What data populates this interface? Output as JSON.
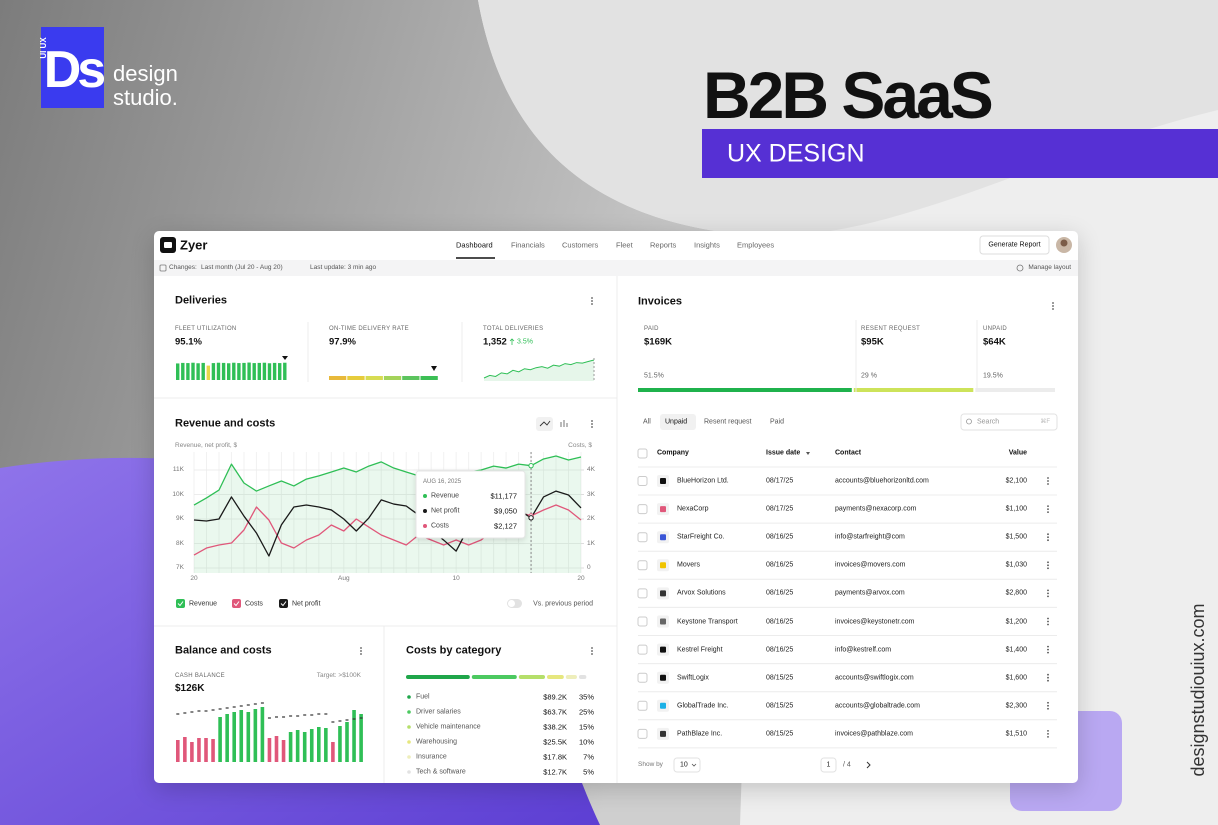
{
  "brand": {
    "tag": "UI UX",
    "logo": "Ds",
    "name": [
      "design",
      "studio."
    ]
  },
  "hero": {
    "title": "B2B SaaS",
    "subtitle": "UX DESIGN"
  },
  "website": "designstudiouiux.com",
  "app": {
    "name": "Zyer",
    "nav": [
      "Dashboard",
      "Financials",
      "Customers",
      "Fleet",
      "Reports",
      "Insights",
      "Employees"
    ],
    "action": "Generate Report",
    "changes_label": "Changes:",
    "changes_value": "Last month (Jul 20 - Aug 20)",
    "last_update": "Last update: 3 min ago",
    "manage_layout": "Manage layout",
    "deliveries": {
      "title": "Deliveries",
      "fleet_utilization": {
        "label": "FLEET UTILIZATION",
        "value": "95.1%",
        "bars": [
          92,
          95,
          94,
          96,
          93,
          95,
          80,
          94,
          96,
          95,
          93,
          96,
          94,
          95,
          97,
          94,
          95,
          96,
          93,
          95,
          94,
          96
        ],
        "bar_colors": [
          "#2fbf56",
          "#2fbf56",
          "#2fbf56",
          "#2fbf56",
          "#2fbf56",
          "#2fbf56",
          "#e6d84a",
          "#2fbf56",
          "#2fbf56",
          "#2fbf56",
          "#2fbf56",
          "#2fbf56",
          "#2fbf56",
          "#2fbf56",
          "#2fbf56",
          "#2fbf56",
          "#2fbf56",
          "#2fbf56",
          "#2fbf56",
          "#2fbf56",
          "#2fbf56",
          "#2fbf56"
        ]
      },
      "on_time": {
        "label": "ON-TIME DELIVERY RATE",
        "value": "97.9%"
      },
      "total": {
        "label": "TOTAL DELIVERIES",
        "value": "1,352",
        "change": "3.5%",
        "trend": [
          40,
          45,
          43,
          50,
          48,
          55,
          52,
          58,
          56,
          60,
          62,
          59,
          65,
          63,
          68,
          66,
          70,
          69,
          72,
          75
        ]
      }
    },
    "revenue_chart": {
      "type": "line",
      "title": "Revenue and costs",
      "y_label": "Revenue, net profit, $",
      "y2_label": "Costs, $",
      "categories": [
        "20",
        null,
        null,
        null,
        null,
        null,
        null,
        null,
        null,
        null,
        null,
        null,
        "Aug",
        null,
        null,
        null,
        null,
        null,
        null,
        null,
        null,
        "10",
        null,
        null,
        null,
        null,
        null,
        null,
        null,
        null,
        null,
        "20"
      ],
      "series": [
        {
          "name": "Revenue",
          "color": "#2fbf56",
          "values": [
            9570,
            9860,
            10180,
            11240,
            10470,
            10140,
            10350,
            10550,
            10350,
            10630,
            10760,
            10920,
            11080,
            10920,
            11160,
            11330,
            11080,
            10920,
            10760,
            10880,
            10670,
            10800,
            10920,
            11000,
            11160,
            11080,
            11240,
            11177,
            11450,
            11570,
            11410,
            11530
          ]
        },
        {
          "name": "Costs",
          "color": "#e0577a",
          "axis": "y2",
          "values": [
            530,
            816,
            939,
            1020,
            1551,
            2490,
            1959,
            1020,
            816,
            1143,
            1347,
            1755,
            1510,
            2000,
            1673,
            1347,
            1143,
            939,
            1347,
            1143,
            939,
            1143,
            939,
            1143,
            1551,
            1959,
            2286,
            2127,
            2367,
            2571,
            2367,
            1959
          ]
        },
        {
          "name": "Net profit",
          "color": "#1a1a1a",
          "values": [
            8960,
            8920,
            9000,
            9900,
            9120,
            8430,
            7490,
            8760,
            9490,
            9570,
            9490,
            9370,
            9000,
            8510,
            9040,
            9780,
            9610,
            9530,
            9160,
            8550,
            8140,
            7690,
            8670,
            9290,
            9370,
            9490,
            9370,
            9050,
            9900,
            10140,
            9980,
            9450
          ]
        }
      ],
      "ylim": [
        6796,
        11735
      ],
      "yticks": [
        {
          "value": 7000,
          "label": "7K"
        },
        {
          "value": 8000,
          "label": "8K"
        },
        {
          "value": 9000,
          "label": "9K"
        },
        {
          "value": 10000,
          "label": "10K"
        },
        {
          "value": 11000,
          "label": "11K"
        }
      ],
      "y2lim": [
        -204,
        4735
      ],
      "y2ticks": [
        0,
        {
          "value": 1000,
          "label": "1K"
        },
        {
          "value": 2000,
          "label": "2K"
        },
        {
          "value": 3000,
          "label": "3K"
        },
        {
          "value": 4000,
          "label": "4K"
        }
      ],
      "grid": true,
      "tooltip": {
        "date": "AUG 16, 2025",
        "rows": [
          {
            "name": "Revenue",
            "value": "$11,177"
          },
          {
            "name": "Net profit",
            "value": "$9,050"
          },
          {
            "name": "Costs",
            "value": "$2,127"
          }
        ]
      },
      "compare": "Vs. previous period"
    },
    "balance": {
      "title": "Balance and costs",
      "label": "CASH BALANCE",
      "target": "Target: >$100K",
      "value": "$126K",
      "bars": [
        22,
        25,
        20,
        24,
        24,
        23,
        45,
        48,
        50,
        52,
        50,
        53,
        55,
        24,
        26,
        22,
        30,
        32,
        30,
        33,
        35,
        34,
        20,
        36,
        40,
        52,
        48
      ],
      "bar_colors": [
        "#e0577a",
        "#e0577a",
        "#e0577a",
        "#e0577a",
        "#e0577a",
        "#e0577a",
        "#2fbf56",
        "#2fbf56",
        "#2fbf56",
        "#2fbf56",
        "#2fbf56",
        "#2fbf56",
        "#2fbf56",
        "#e0577a",
        "#e0577a",
        "#e0577a",
        "#2fbf56",
        "#2fbf56",
        "#2fbf56",
        "#2fbf56",
        "#2fbf56",
        "#2fbf56",
        "#e0577a",
        "#2fbf56",
        "#2fbf56",
        "#2fbf56",
        "#2fbf56"
      ],
      "targets": [
        48,
        49,
        50,
        51,
        51,
        52,
        53,
        54,
        55,
        56,
        57,
        58,
        59,
        44,
        45,
        45,
        46,
        46,
        47,
        47,
        48,
        48,
        40,
        41,
        42,
        43,
        44
      ]
    },
    "costs_by_category": {
      "title": "Costs by category",
      "rows": [
        {
          "name": "Fuel",
          "amount": "$89.2K",
          "share": "35%",
          "color": "#1fa64a"
        },
        {
          "name": "Driver salaries",
          "amount": "$63.7K",
          "share": "25%",
          "color": "#4cc960"
        },
        {
          "name": "Vehicle maintenance",
          "amount": "$38.2K",
          "share": "15%",
          "color": "#b5df6a"
        },
        {
          "name": "Warehousing",
          "amount": "$25.5K",
          "share": "10%",
          "color": "#e6e77e"
        },
        {
          "name": "Insurance",
          "amount": "$17.8K",
          "share": "7%",
          "color": "#eeeebb"
        },
        {
          "name": "Tech & software",
          "amount": "$12.7K",
          "share": "5%",
          "color": "#e2e2e2"
        }
      ]
    },
    "invoices": {
      "title": "Invoices",
      "summary": [
        {
          "label": "PAID",
          "value": "$169K",
          "share": "51.5%",
          "color": "#1fb24c"
        },
        {
          "label": "RESENT REQUEST",
          "value": "$95K",
          "share": "29 %",
          "color": "#cde35a"
        },
        {
          "label": "UNPAID",
          "value": "$64K",
          "share": "19.5%",
          "color": "#ececec"
        }
      ],
      "tabs": [
        "All",
        "Unpaid",
        "Resent request",
        "Paid"
      ],
      "search": "Search",
      "search_shortcut": "⌘F",
      "columns": [
        "Company",
        "Issue date",
        "Contact",
        "Value"
      ],
      "rows": [
        [
          "BlueHorizon Ltd.",
          "08/17/25",
          "accounts@bluehorizonltd.com",
          "$2,100"
        ],
        [
          "NexaCorp",
          "08/17/25",
          "payments@nexacorp.com",
          "$1,100"
        ],
        [
          "StarFreight Co.",
          "08/16/25",
          "info@starfreight@com",
          "$1,500"
        ],
        [
          "Movers",
          "08/16/25",
          "invoices@movers.com",
          "$1,030"
        ],
        [
          "Arvox Solutions",
          "08/16/25",
          "payments@arvox.com",
          "$2,800"
        ],
        [
          "Keystone Transport",
          "08/16/25",
          "invoices@keystonetr.com",
          "$1,200"
        ],
        [
          "Kestrel Freight",
          "08/16/25",
          "info@kestrelf.com",
          "$1,400"
        ],
        [
          "SwiftLogix",
          "08/15/25",
          "accounts@swiftlogix.com",
          "$1,600"
        ],
        [
          "GlobalTrade Inc.",
          "08/15/25",
          "accounts@globaltrade.com",
          "$2,300"
        ],
        [
          "PathBlaze Inc.",
          "08/15/25",
          "invoices@pathblaze.com",
          "$1,510"
        ]
      ],
      "show_by": "Show by",
      "page_size": "10",
      "page": "1",
      "page_total": "/ 4"
    }
  }
}
